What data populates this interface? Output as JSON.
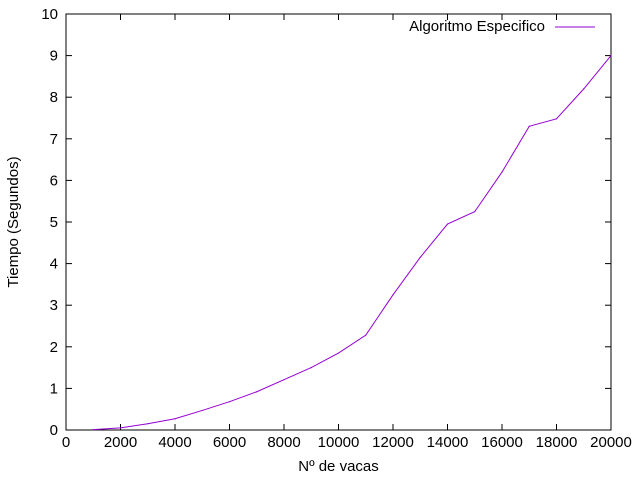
{
  "chart_data": {
    "type": "line",
    "xlabel": "Nº de vacas",
    "ylabel": "Tiempo (Segundos)",
    "xlim": [
      0,
      20000
    ],
    "ylim": [
      0,
      10
    ],
    "xticks": [
      "0",
      "2000",
      "4000",
      "6000",
      "8000",
      "10000",
      "12000",
      "14000",
      "16000",
      "18000",
      "20000"
    ],
    "yticks": [
      "0",
      "1",
      "2",
      "3",
      "4",
      "5",
      "6",
      "7",
      "8",
      "9",
      "10"
    ],
    "grid": false,
    "legend_position": "top-right",
    "series": [
      {
        "name": "Algoritmo Especifico",
        "color": "#9400d3",
        "x": [
          1000,
          2000,
          3000,
          4000,
          5000,
          6000,
          7000,
          8000,
          9000,
          10000,
          11000,
          12000,
          13000,
          14000,
          15000,
          16000,
          17000,
          18000,
          19000,
          20000
        ],
        "y": [
          0.01,
          0.05,
          0.15,
          0.27,
          0.47,
          0.68,
          0.92,
          1.21,
          1.5,
          1.85,
          2.28,
          3.25,
          4.15,
          4.95,
          5.25,
          6.2,
          7.3,
          7.48,
          8.2,
          9.0
        ]
      }
    ]
  }
}
